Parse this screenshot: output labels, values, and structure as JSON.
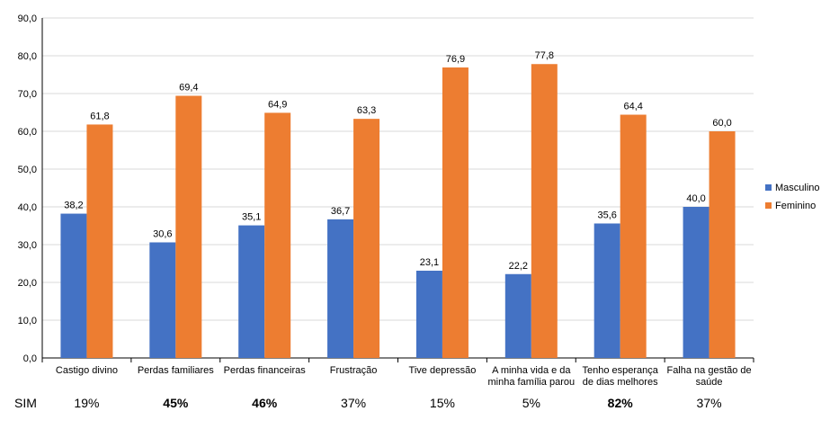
{
  "chart_data": {
    "type": "bar",
    "categories": [
      [
        "Castigo divino"
      ],
      [
        "Perdas familiares"
      ],
      [
        "Perdas financeiras"
      ],
      [
        "Frustração"
      ],
      [
        "Tive depressão"
      ],
      [
        "A minha vida e da",
        "minha família parou"
      ],
      [
        "Tenho esperança",
        "de dias melhores"
      ],
      [
        "Falha na gestão de",
        "saúde"
      ]
    ],
    "series": [
      {
        "name": "Masculino",
        "color": "#4472C4",
        "values": [
          38.2,
          30.6,
          35.1,
          36.7,
          23.1,
          22.2,
          35.6,
          40.0
        ]
      },
      {
        "name": "Feminino",
        "color": "#ED7D31",
        "values": [
          61.8,
          69.4,
          64.9,
          63.3,
          76.9,
          77.8,
          64.4,
          60.0
        ]
      }
    ],
    "ylim": [
      0,
      90
    ],
    "yticks": [
      "0,0",
      "10,0",
      "20,0",
      "30,0",
      "40,0",
      "50,0",
      "60,0",
      "70,0",
      "80,0",
      "90,0"
    ],
    "grid": true,
    "legend": "right"
  },
  "sim": {
    "label": "SIM",
    "values": [
      {
        "text": "19%",
        "bold": false
      },
      {
        "text": "45%",
        "bold": true
      },
      {
        "text": "46%",
        "bold": true
      },
      {
        "text": "37%",
        "bold": false
      },
      {
        "text": "15%",
        "bold": false
      },
      {
        "text": "5%",
        "bold": false
      },
      {
        "text": "82%",
        "bold": true
      },
      {
        "text": "37%",
        "bold": false
      }
    ]
  }
}
